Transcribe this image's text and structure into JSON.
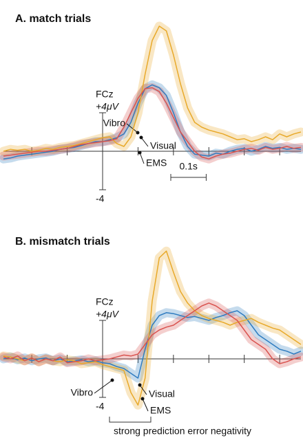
{
  "chart_data": [
    {
      "type": "line",
      "title": "A. match trials",
      "ylabel": "FCz",
      "x": [
        -0.28,
        -0.26,
        -0.24,
        -0.22,
        -0.2,
        -0.18,
        -0.16,
        -0.14,
        -0.12,
        -0.1,
        -0.08,
        -0.06,
        -0.04,
        -0.02,
        0,
        0.02,
        0.04,
        0.06,
        0.08,
        0.1,
        0.12,
        0.14,
        0.16,
        0.18,
        0.2,
        0.22,
        0.24,
        0.26,
        0.28,
        0.3,
        0.32,
        0.34,
        0.36,
        0.38,
        0.4,
        0.42,
        0.44,
        0.46,
        0.48,
        0.5,
        0.52,
        0.54,
        0.56
      ],
      "xlim": [
        -0.28,
        0.56
      ],
      "xticks": [
        -0.2,
        -0.1,
        0,
        0.1,
        0.2,
        0.3,
        0.4,
        0.5
      ],
      "ylim": [
        -5,
        13.5
      ],
      "yticks": [
        {
          "value": 4,
          "label": "+4μV"
        },
        {
          "value": -4,
          "label": "-4"
        }
      ],
      "scalebar": {
        "value": 0.1,
        "label": "0.1s"
      },
      "series": [
        {
          "name": "Vibro",
          "color": "#2f7cc0",
          "values": [
            -0.8,
            -0.7,
            -0.5,
            -0.4,
            -0.3,
            -0.2,
            -0.1,
            0,
            0.2,
            0.3,
            0.4,
            0.6,
            0.8,
            1.0,
            1.0,
            1.2,
            1.4,
            1.8,
            3,
            5,
            6.5,
            6.9,
            6.6,
            5.8,
            4,
            2,
            0.5,
            -0.3,
            -0.4,
            -0.5,
            -0.2,
            -0.3,
            0,
            0.2,
            0.3,
            0,
            0.2,
            0.5,
            0.3,
            0.4,
            0.2,
            0.3,
            0.2
          ]
        },
        {
          "name": "Visual",
          "color": "#e8a92a",
          "values": [
            0,
            0.2,
            0.1,
            0.2,
            0,
            0.1,
            0.3,
            0.2,
            0.4,
            0.5,
            0.6,
            0.8,
            1.0,
            1.2,
            1.4,
            1.5,
            0.8,
            0.5,
            1.5,
            4,
            8,
            11.5,
            13,
            12.5,
            10,
            7,
            4.5,
            3,
            2.5,
            2.2,
            2,
            1.8,
            1.5,
            1.2,
            1.3,
            1,
            1.2,
            1.5,
            1.2,
            1.8,
            1.5,
            1.8,
            2
          ]
        },
        {
          "name": "EMS",
          "color": "#d9534f",
          "values": [
            -0.5,
            -0.4,
            -0.3,
            -0.2,
            -0.1,
            0,
            0,
            0.1,
            0.2,
            0.3,
            0.5,
            0.7,
            0.8,
            0.9,
            1.0,
            1.1,
            1.3,
            2.5,
            4,
            5.5,
            6.5,
            6.6,
            6.2,
            5,
            3.5,
            2,
            1,
            0,
            -0.6,
            -0.8,
            -0.5,
            -0.3,
            -0.2,
            0,
            0.2,
            0.3,
            0.1,
            0.4,
            0.2,
            0.3,
            0.5,
            0.3,
            0.4
          ]
        }
      ]
    },
    {
      "type": "line",
      "title": "B. mismatch trials",
      "ylabel": "FCz",
      "x": [
        -0.28,
        -0.26,
        -0.24,
        -0.22,
        -0.2,
        -0.18,
        -0.16,
        -0.14,
        -0.12,
        -0.1,
        -0.08,
        -0.06,
        -0.04,
        -0.02,
        0,
        0.02,
        0.04,
        0.06,
        0.08,
        0.1,
        0.12,
        0.14,
        0.16,
        0.18,
        0.2,
        0.22,
        0.24,
        0.26,
        0.28,
        0.3,
        0.32,
        0.34,
        0.36,
        0.38,
        0.4,
        0.42,
        0.44,
        0.46,
        0.48,
        0.5,
        0.52,
        0.54,
        0.56
      ],
      "xlim": [
        -0.28,
        0.56
      ],
      "xticks": [
        -0.2,
        -0.1,
        0,
        0.1,
        0.2,
        0.3,
        0.4,
        0.5
      ],
      "ylim": [
        -6.5,
        12.5
      ],
      "yticks": [
        {
          "value": 4,
          "label": "+4μV"
        },
        {
          "value": -4,
          "label": "-4"
        }
      ],
      "annotation": "strong prediction error negativity",
      "series": [
        {
          "name": "Vibro",
          "color": "#2f7cc0",
          "values": [
            0,
            0.2,
            -0.1,
            0.1,
            -0.2,
            0,
            0.1,
            -0.2,
            0,
            -0.3,
            -0.2,
            -0.1,
            -0.3,
            -0.2,
            -0.4,
            -0.5,
            -0.8,
            -1,
            -1.5,
            -2,
            1,
            3.5,
            4.5,
            4.8,
            4.7,
            4.5,
            4.3,
            4.4,
            4.2,
            4,
            4.3,
            4.5,
            4.8,
            5,
            4.5,
            3.5,
            2.5,
            2,
            1.5,
            1,
            0.8,
            0.5,
            0.8
          ]
        },
        {
          "name": "Visual",
          "color": "#e8a92a",
          "values": [
            0.3,
            0.2,
            0,
            -0.2,
            0.1,
            -0.3,
            0,
            -0.2,
            -0.3,
            -0.1,
            -0.2,
            -0.5,
            -0.4,
            -0.3,
            -0.6,
            -0.8,
            -1,
            -1.2,
            -3.5,
            -4.8,
            -2,
            6,
            10.5,
            11.2,
            9,
            7,
            5.8,
            5,
            4.5,
            4.2,
            4,
            3.8,
            3.5,
            3.8,
            4,
            4.2,
            3.8,
            3.5,
            3.2,
            3,
            2.5,
            2,
            1.5
          ]
        },
        {
          "name": "EMS",
          "color": "#d9534f",
          "values": [
            0.2,
            0,
            0.3,
            -0.2,
            0.1,
            -0.3,
            0,
            -0.2,
            0.2,
            -0.4,
            -0.3,
            -0.2,
            0,
            -0.2,
            -0.1,
            0,
            0.2,
            0.4,
            0.3,
            0.5,
            1.5,
            2.5,
            3,
            3.3,
            3.5,
            4,
            4.5,
            5,
            5.5,
            5.8,
            5.5,
            5,
            4.5,
            4,
            3,
            2,
            1.5,
            1,
            0,
            -0.5,
            -0.3,
            0,
            0.2
          ]
        }
      ]
    }
  ]
}
